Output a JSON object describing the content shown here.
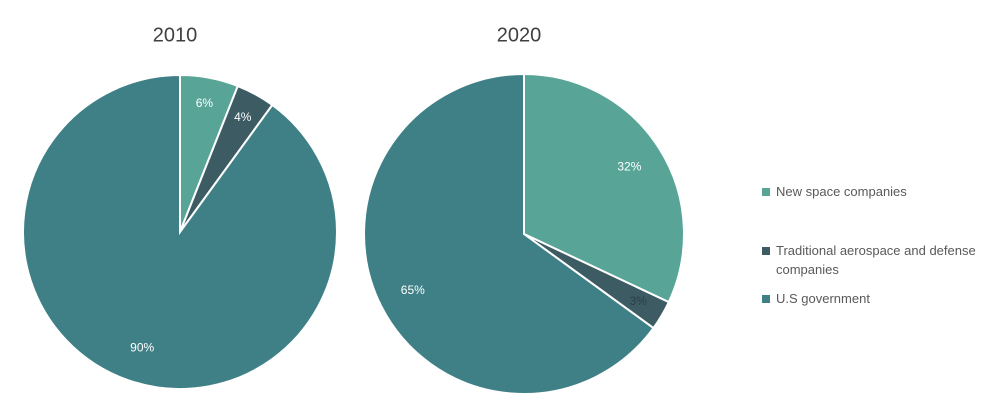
{
  "chart_data": [
    {
      "type": "pie",
      "title": "2010",
      "categories": [
        "New space companies",
        "Traditional aerospace and defense companies",
        "U.S government"
      ],
      "values": [
        6,
        4,
        90
      ],
      "value_labels": [
        "6%",
        "4%",
        "90%"
      ],
      "colors": [
        "#58a598",
        "#3d5b63",
        "#3f8087"
      ]
    },
    {
      "type": "pie",
      "title": "2020",
      "categories": [
        "New space companies",
        "Traditional aerospace and defense companies",
        "U.S government"
      ],
      "values": [
        32,
        3,
        65
      ],
      "value_labels": [
        "32%",
        "3%",
        "65%"
      ],
      "colors": [
        "#58a598",
        "#3d5b63",
        "#3f8087"
      ]
    }
  ]
}
